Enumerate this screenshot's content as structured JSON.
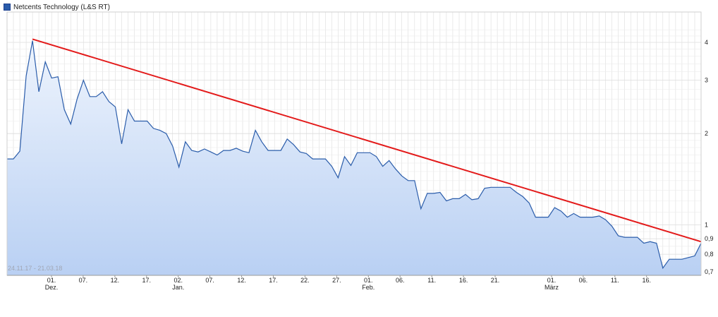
{
  "chart_data": {
    "type": "line",
    "legend": {
      "label": "Netcents Technology (L&S RT)",
      "placement": "top-left"
    },
    "date_range": "24.11.17 - 21.03.18",
    "y_scale": "log",
    "ylim": [
      0.6,
      4.6
    ],
    "y_ticks": [
      {
        "value": 4,
        "label": "4"
      },
      {
        "value": 3,
        "label": "3"
      },
      {
        "value": 2,
        "label": "2"
      },
      {
        "value": 1,
        "label": "1"
      },
      {
        "value": 0.9,
        "label": "0,9"
      },
      {
        "value": 0.8,
        "label": "0,8"
      },
      {
        "value": 0.7,
        "label": "0,7"
      }
    ],
    "grid": true,
    "x_ticks": [
      {
        "label": "01.",
        "sub": "Dez."
      },
      {
        "label": "07.",
        "sub": ""
      },
      {
        "label": "12.",
        "sub": ""
      },
      {
        "label": "17.",
        "sub": ""
      },
      {
        "label": "02.",
        "sub": "Jan."
      },
      {
        "label": "07.",
        "sub": ""
      },
      {
        "label": "12.",
        "sub": ""
      },
      {
        "label": "17.",
        "sub": ""
      },
      {
        "label": "22.",
        "sub": ""
      },
      {
        "label": "27.",
        "sub": ""
      },
      {
        "label": "01.",
        "sub": "Feb."
      },
      {
        "label": "06.",
        "sub": ""
      },
      {
        "label": "11.",
        "sub": ""
      },
      {
        "label": "16.",
        "sub": ""
      },
      {
        "label": "21.",
        "sub": ""
      },
      {
        "label": "01.",
        "sub": "März"
      },
      {
        "label": "06.",
        "sub": ""
      },
      {
        "label": "11.",
        "sub": ""
      },
      {
        "label": "16.",
        "sub": ""
      }
    ],
    "series": [
      {
        "values": [
          1.65,
          1.65,
          1.75,
          3.1,
          4.05,
          2.75,
          3.45,
          3.05,
          3.08,
          2.4,
          2.15,
          2.6,
          3.0,
          2.65,
          2.65,
          2.75,
          2.55,
          2.45,
          1.85,
          2.4,
          2.2,
          2.2,
          2.2,
          2.08,
          2.05,
          2.0,
          1.82,
          1.55,
          1.88,
          1.76,
          1.74,
          1.78,
          1.74,
          1.7,
          1.76,
          1.76,
          1.79,
          1.75,
          1.73,
          2.05,
          1.88,
          1.76,
          1.76,
          1.76,
          1.92,
          1.84,
          1.74,
          1.72,
          1.65,
          1.65,
          1.65,
          1.56,
          1.43,
          1.68,
          1.57,
          1.73,
          1.73,
          1.73,
          1.68,
          1.56,
          1.63,
          1.53,
          1.45,
          1.4,
          1.4,
          1.13,
          1.27,
          1.27,
          1.28,
          1.2,
          1.22,
          1.22,
          1.26,
          1.21,
          1.22,
          1.32,
          1.33,
          1.33,
          1.33,
          1.33,
          1.28,
          1.24,
          1.18,
          1.06,
          1.06,
          1.06,
          1.14,
          1.11,
          1.06,
          1.09,
          1.06,
          1.06,
          1.06,
          1.07,
          1.04,
          0.99,
          0.92,
          0.91,
          0.91,
          0.91,
          0.87,
          0.88,
          0.87,
          0.72,
          0.77,
          0.77,
          0.77,
          0.78,
          0.79,
          0.87
        ]
      }
    ],
    "trendline": {
      "color": "#e31a1a",
      "start": {
        "index": 4,
        "value": 4.1
      },
      "end": {
        "index": 109,
        "value": 0.88
      }
    },
    "colors": {
      "line": "#2a5caa",
      "fill_top": "#eef4fd",
      "fill_bottom": "#b9d0f3",
      "grid": "#dcdcdc",
      "axis": "#9a9a9a"
    }
  }
}
